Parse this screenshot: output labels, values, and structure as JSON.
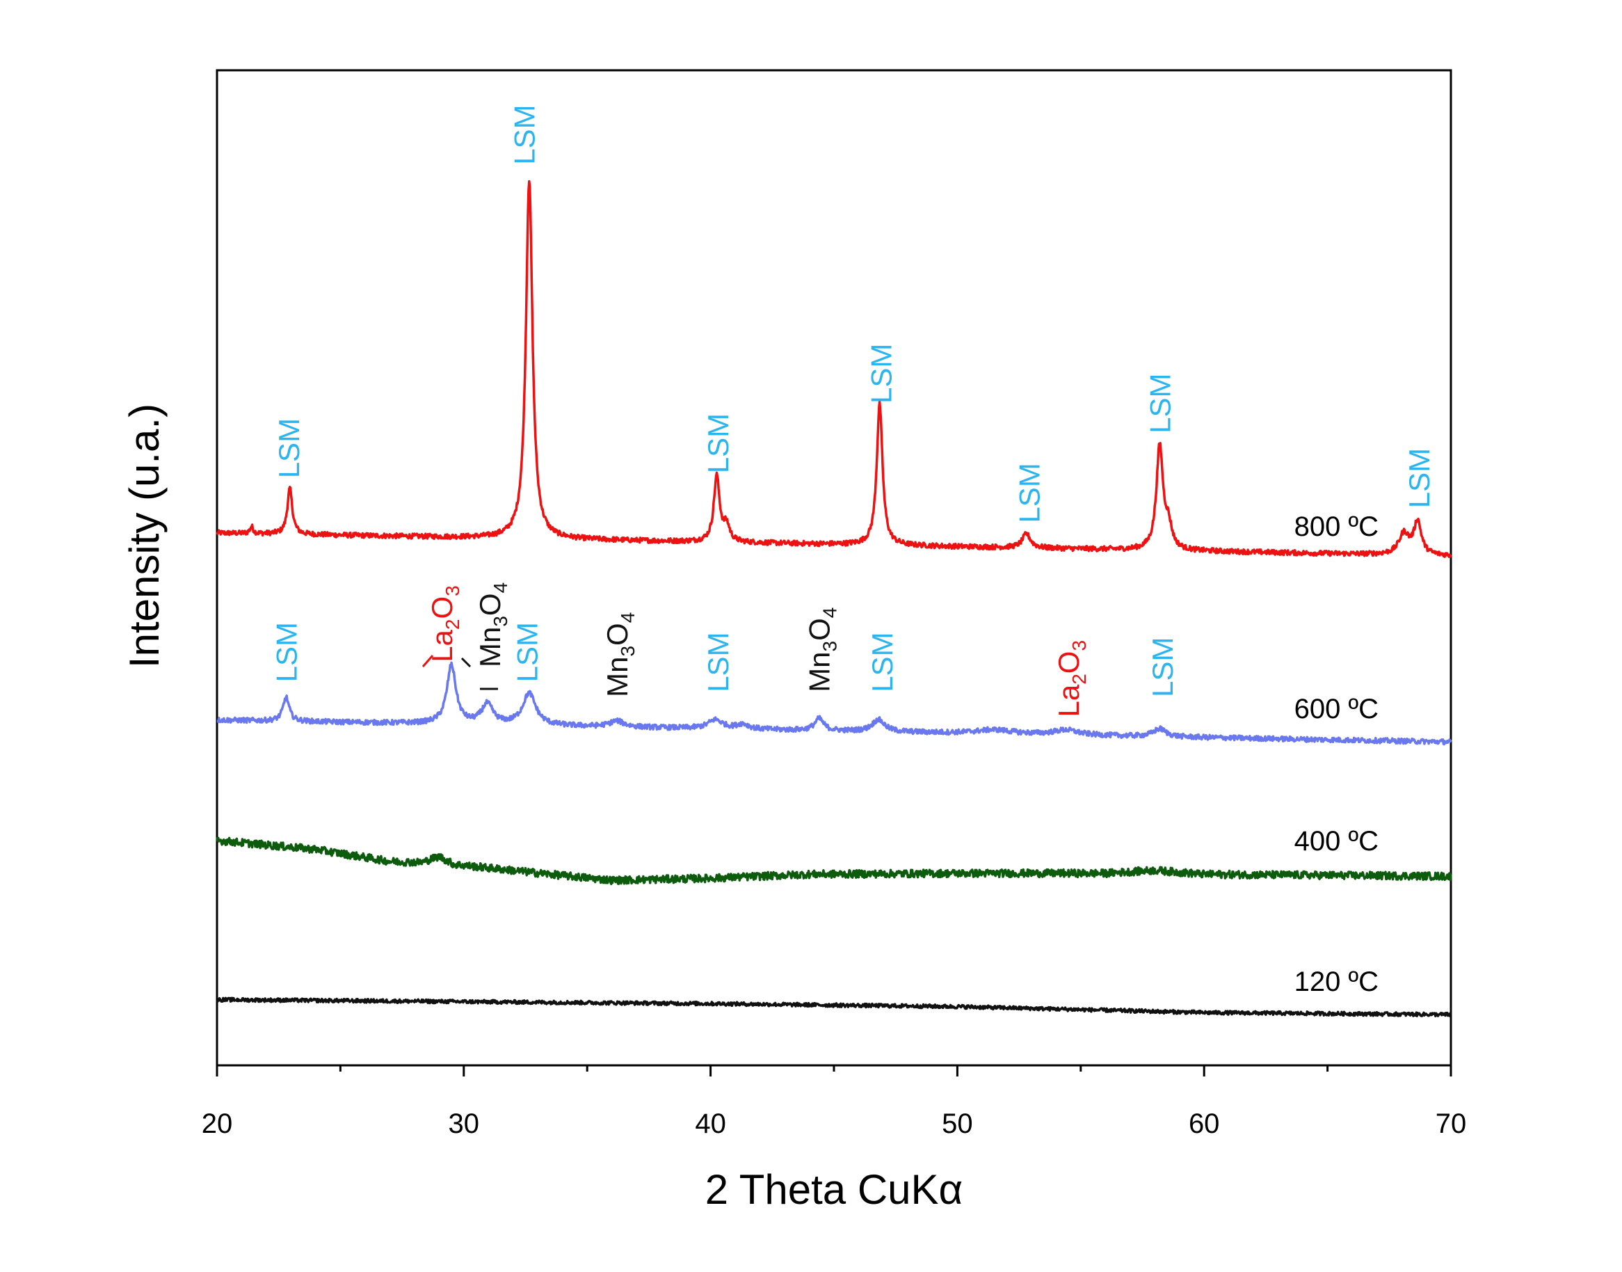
{
  "chart_data": {
    "type": "line",
    "title": "",
    "xlabel": "2 Theta CuKα",
    "ylabel": "Intensity (u.a.)",
    "xlim": [
      20,
      70
    ],
    "ylim": [
      0,
      100
    ],
    "x_ticks": [
      20,
      30,
      40,
      50,
      60,
      70
    ],
    "x_tick_labels": [
      "20",
      "30",
      "40",
      "50",
      "60",
      "70"
    ],
    "y_ticks_shown": false,
    "grid": false,
    "series": [
      {
        "name": "800 ºC",
        "label": "800 ºC",
        "color": "#ee1111",
        "baseline_start": 53.5,
        "baseline_end": 51.2,
        "noise": 0.25,
        "peaks": [
          {
            "x": 21.4,
            "h": 0.7,
            "w": 0.08
          },
          {
            "x": 22.95,
            "h": 4.6,
            "w": 0.12
          },
          {
            "x": 32.65,
            "h": 36.0,
            "w": 0.16
          },
          {
            "x": 40.25,
            "h": 6.6,
            "w": 0.14
          },
          {
            "x": 40.65,
            "h": 1.6,
            "w": 0.15
          },
          {
            "x": 46.85,
            "h": 14.2,
            "w": 0.14
          },
          {
            "x": 52.8,
            "h": 1.4,
            "w": 0.2
          },
          {
            "x": 58.2,
            "h": 10.4,
            "w": 0.16
          },
          {
            "x": 58.55,
            "h": 2.2,
            "w": 0.17
          },
          {
            "x": 68.1,
            "h": 2.1,
            "w": 0.25
          },
          {
            "x": 68.65,
            "h": 3.3,
            "w": 0.18
          }
        ]
      },
      {
        "name": "600 ºC",
        "label": "600 ºC",
        "color": "#6a78f0",
        "baseline_start": 34.7,
        "baseline_end": 32.5,
        "noise": 0.25,
        "peaks": [
          {
            "x": 22.8,
            "h": 2.4,
            "w": 0.15
          },
          {
            "x": 29.5,
            "h": 5.9,
            "w": 0.22
          },
          {
            "x": 30.95,
            "h": 2.0,
            "w": 0.28
          },
          {
            "x": 32.65,
            "h": 3.2,
            "w": 0.32
          },
          {
            "x": 36.2,
            "h": 0.6,
            "w": 0.35
          },
          {
            "x": 40.2,
            "h": 0.9,
            "w": 0.35
          },
          {
            "x": 41.3,
            "h": 0.5,
            "w": 0.3
          },
          {
            "x": 44.4,
            "h": 1.2,
            "w": 0.22
          },
          {
            "x": 46.8,
            "h": 1.2,
            "w": 0.3
          },
          {
            "x": 51.5,
            "h": 0.4,
            "w": 0.9
          },
          {
            "x": 54.4,
            "h": 0.5,
            "w": 0.6
          },
          {
            "x": 58.2,
            "h": 0.8,
            "w": 0.3
          }
        ]
      },
      {
        "name": "400 ºC",
        "label": "400 ºC",
        "color": "#0d5c0d",
        "baseline_points": [
          [
            20,
            22.6
          ],
          [
            24,
            21.7
          ],
          [
            27,
            20.5
          ],
          [
            28.3,
            20.4
          ],
          [
            29.0,
            21.0
          ],
          [
            29.6,
            20.2
          ],
          [
            33.5,
            19.2
          ],
          [
            36,
            18.6
          ],
          [
            40,
            18.8
          ],
          [
            44,
            19.2
          ],
          [
            50,
            19.3
          ],
          [
            56,
            19.3
          ],
          [
            58.0,
            19.6
          ],
          [
            60,
            19.2
          ],
          [
            70,
            19.0
          ]
        ],
        "noise": 0.38
      },
      {
        "name": "120 ºC",
        "label": "120 ºC",
        "color": "#111111",
        "baseline_points": [
          [
            20,
            6.6
          ],
          [
            25,
            6.5
          ],
          [
            40,
            6.2
          ],
          [
            50,
            5.9
          ],
          [
            60,
            5.3
          ],
          [
            70,
            5.1
          ]
        ],
        "noise": 0.18
      }
    ],
    "annotations": [
      {
        "text": "LSM",
        "x": 22.9,
        "y": 59,
        "color": "#2ab4f0"
      },
      {
        "text": "LSM",
        "x": 32.45,
        "y": 90.5,
        "color": "#2ab4f0"
      },
      {
        "text": "LSM",
        "x": 40.3,
        "y": 59.5,
        "color": "#2ab4f0"
      },
      {
        "text": "LSM",
        "x": 46.9,
        "y": 66.5,
        "color": "#2ab4f0"
      },
      {
        "text": "LSM",
        "x": 52.9,
        "y": 54.5,
        "color": "#2ab4f0"
      },
      {
        "text": "LSM",
        "x": 58.2,
        "y": 63.5,
        "color": "#2ab4f0"
      },
      {
        "text": "LSM",
        "x": 68.7,
        "y": 56,
        "color": "#2ab4f0"
      },
      {
        "text": "LSM",
        "x": 22.8,
        "y": 38.5,
        "color": "#2ab4f0"
      },
      {
        "text": "La",
        "sub": "2",
        "text2": "O",
        "sub2": "3",
        "x": 29.1,
        "y": 40.5,
        "color": "#ee1111"
      },
      {
        "text": "Mn",
        "sub": "3",
        "text2": "O",
        "sub2": "4",
        "x": 31.05,
        "y": 40,
        "color": "#111111"
      },
      {
        "text": "LSM",
        "x": 32.55,
        "y": 38.5,
        "color": "#2ab4f0"
      },
      {
        "text": "Mn",
        "sub": "3",
        "text2": "O",
        "sub2": "4",
        "x": 36.2,
        "y": 37,
        "color": "#111111"
      },
      {
        "text": "LSM",
        "x": 40.3,
        "y": 37.5,
        "color": "#2ab4f0"
      },
      {
        "text": "Mn",
        "sub": "3",
        "text2": "O",
        "sub2": "4",
        "x": 44.4,
        "y": 37.5,
        "color": "#111111"
      },
      {
        "text": "LSM",
        "x": 46.95,
        "y": 37.5,
        "color": "#2ab4f0"
      },
      {
        "text": "La",
        "sub": "2",
        "text2": "O",
        "sub2": "3",
        "x": 54.5,
        "y": 35,
        "color": "#ee1111"
      },
      {
        "text": "LSM",
        "x": 58.3,
        "y": 37,
        "color": "#2ab4f0"
      }
    ],
    "series_labels_position": "right, above each trace"
  }
}
